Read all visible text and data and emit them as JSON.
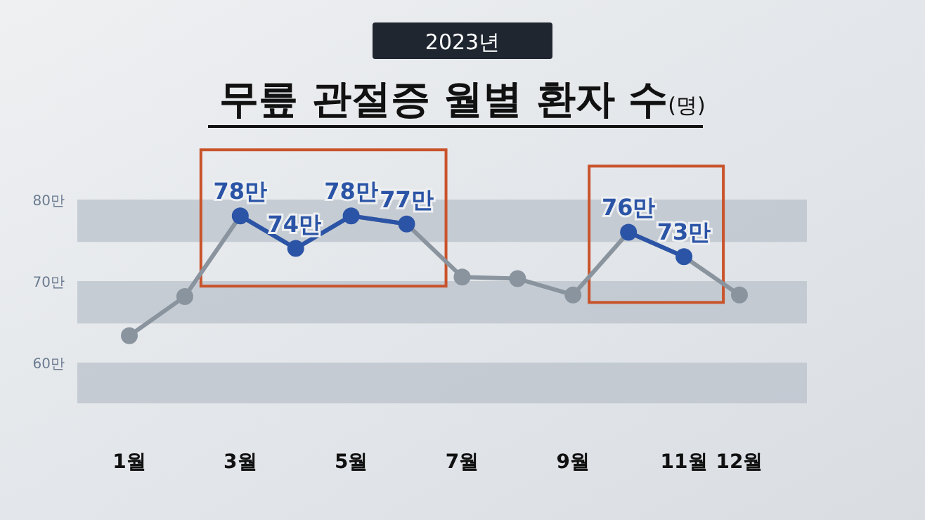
{
  "chart_data": {
    "type": "line",
    "title": "무릎 관절증 월별 환자 수(명)",
    "subtitle": "2023년",
    "categories": [
      "1월",
      null,
      "3월",
      null,
      "5월",
      null,
      "7월",
      null,
      "9월",
      null,
      "11월",
      "12월"
    ],
    "series": [
      {
        "color": "#8a949e",
        "values": [
          63.3,
          68.1,
          78,
          74,
          78,
          77,
          70.5,
          70.3,
          68.3,
          76,
          73,
          68.3
        ],
        "colors": [
          "#8a949e",
          "#8a949e",
          "#2b54a6",
          "#2b54a6",
          "#2b54a6",
          "#2b54a6",
          "#8a949e",
          "#8a949e",
          "#8a949e",
          "#2b54a6",
          "#2b54a6",
          "#8a949e"
        ],
        "value_labels": [
          null,
          null,
          "78만",
          "74만",
          "78만",
          "77만",
          null,
          null,
          null,
          "76만",
          "73만",
          null
        ]
      }
    ],
    "ylim": [
      60,
      80
    ],
    "bands": [
      {
        "axis": "y",
        "from": 74.8,
        "to": 80,
        "color": "#b9c1cb"
      },
      {
        "axis": "y",
        "from": 64.8,
        "to": 70,
        "color": "#b9c1cb"
      },
      {
        "axis": "y",
        "from": 55,
        "to": 60,
        "color": "#b9c1cb"
      }
    ],
    "yticks": [
      {
        "value": 60,
        "label": "60만"
      },
      {
        "value": 70,
        "label": "70만"
      },
      {
        "value": 80,
        "label": "80만"
      }
    ],
    "marker": "circle",
    "line_style": "solid"
  }
}
